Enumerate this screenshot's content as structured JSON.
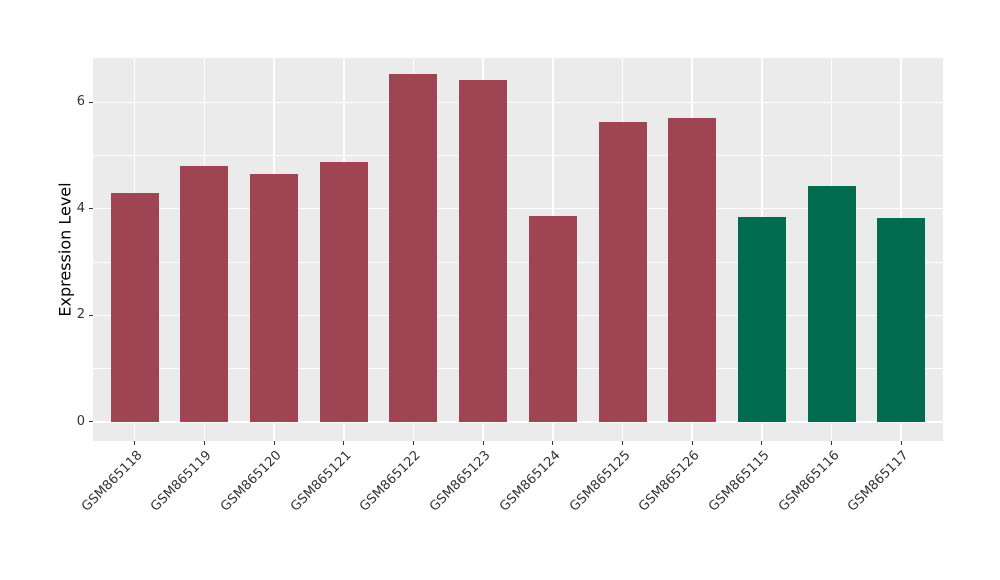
{
  "chart_data": {
    "type": "bar",
    "title": "",
    "xlabel": "",
    "ylabel": "Expression Level",
    "categories": [
      "GSM865118",
      "GSM865119",
      "GSM865120",
      "GSM865121",
      "GSM865122",
      "GSM865123",
      "GSM865124",
      "GSM865125",
      "GSM865126",
      "GSM865115",
      "GSM865116",
      "GSM865117"
    ],
    "values": [
      4.3,
      4.8,
      4.66,
      4.87,
      6.53,
      6.41,
      3.86,
      5.63,
      5.7,
      3.85,
      4.43,
      3.83
    ],
    "bar_colors": [
      "#9e4452",
      "#9e4452",
      "#9e4452",
      "#9e4452",
      "#9e4452",
      "#9e4452",
      "#9e4452",
      "#9e4452",
      "#9e4452",
      "#006b4e",
      "#006b4e",
      "#006b4e"
    ],
    "group_colors": {
      "maroon": "#9e4452",
      "green": "#006b4e"
    },
    "ylim": [
      -0.36,
      6.83
    ],
    "yticks_major": [
      0,
      2,
      4,
      6
    ],
    "yticks_minor": [
      1,
      3,
      5
    ],
    "ytick_labels": [
      "0",
      "2",
      "4",
      "6"
    ],
    "grid": "on",
    "legend": "none",
    "panel_bg": "#ebebeb",
    "grid_color": "#ffffff",
    "tick_color": "#333333",
    "tick_label_color": "#333333",
    "axis_title_color": "#000000"
  }
}
